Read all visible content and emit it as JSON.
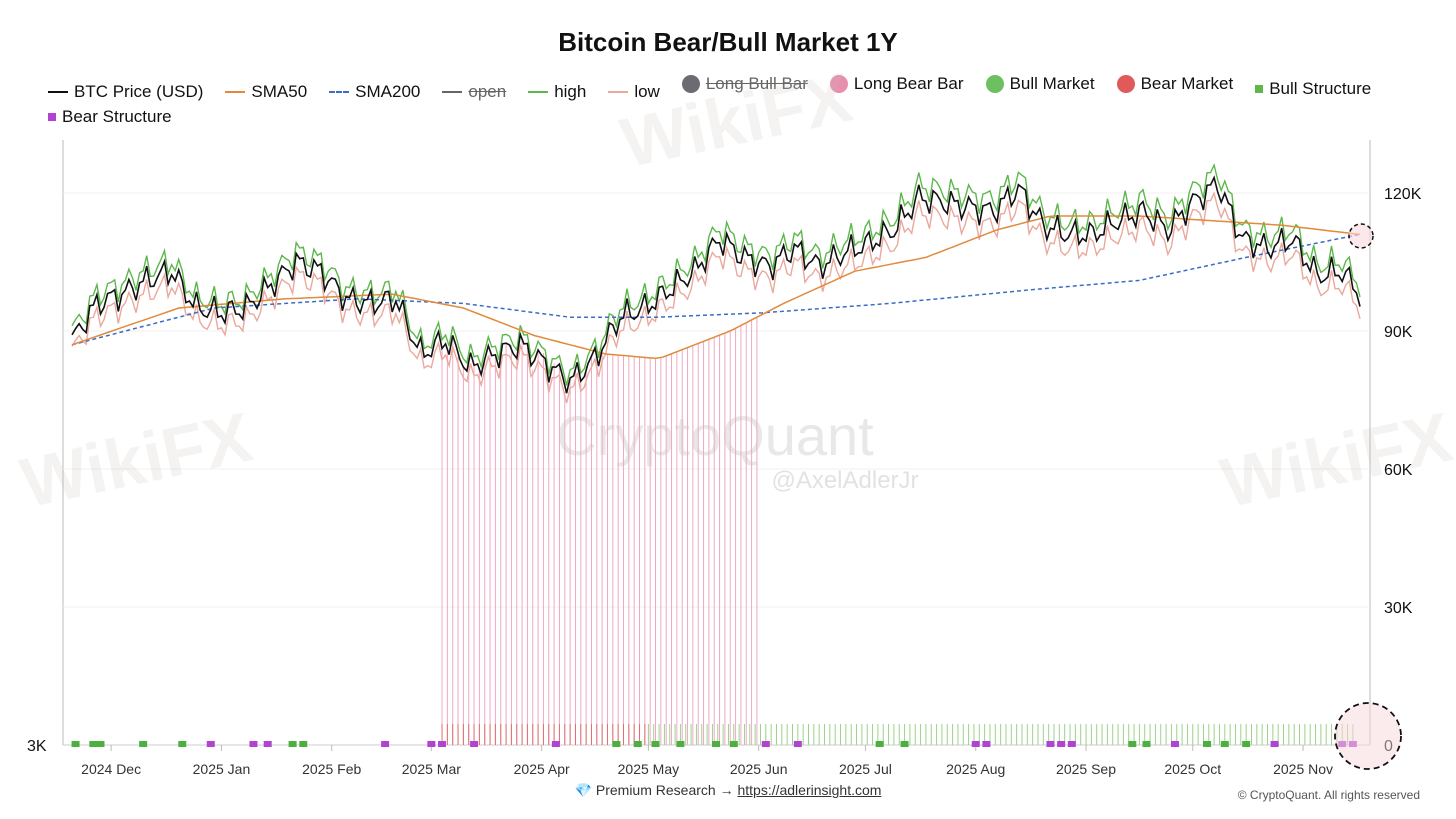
{
  "chart_data": {
    "type": "line",
    "title": "Bitcoin Bear/Bull Market 1Y",
    "legend": [
      {
        "label": "BTC Price (USD)",
        "kind": "line",
        "color": "#111111",
        "hidden": false
      },
      {
        "label": "SMA50",
        "kind": "line",
        "color": "#e08a3c",
        "hidden": false
      },
      {
        "label": "SMA200",
        "kind": "dash",
        "color": "#3a6cc8",
        "hidden": false
      },
      {
        "label": "open",
        "kind": "line",
        "color": "#666666",
        "hidden": true
      },
      {
        "label": "high",
        "kind": "line",
        "color": "#5cb84a",
        "hidden": false
      },
      {
        "label": "low",
        "kind": "line",
        "color": "#eba89d",
        "hidden": false
      },
      {
        "label": "Long Bull Bar",
        "kind": "dot",
        "color": "#6b6b73",
        "hidden": true
      },
      {
        "label": "Long Bear Bar",
        "kind": "dot",
        "color": "#e88fb0",
        "hidden": false
      },
      {
        "label": "Bull Market",
        "kind": "dot",
        "color": "#6cc060",
        "hidden": false
      },
      {
        "label": "Bear Market",
        "kind": "dot",
        "color": "#e05a5a",
        "hidden": false
      },
      {
        "label": "Bull Structure",
        "kind": "sq",
        "color": "#5cb84a",
        "hidden": false
      },
      {
        "label": "Bear Structure",
        "kind": "sq",
        "color": "#b044d0",
        "hidden": false
      }
    ],
    "x_start": "2024-11-20",
    "x_end": "2025-11-17",
    "step_days": 7,
    "x_ticks": [
      {
        "label": "2024 Dec",
        "date": "2024-12-01"
      },
      {
        "label": "2025 Jan",
        "date": "2025-01-01"
      },
      {
        "label": "2025 Feb",
        "date": "2025-02-01"
      },
      {
        "label": "2025 Mar",
        "date": "2025-03-01"
      },
      {
        "label": "2025 Apr",
        "date": "2025-04-01"
      },
      {
        "label": "2025 May",
        "date": "2025-05-01"
      },
      {
        "label": "2025 Jun",
        "date": "2025-06-01"
      },
      {
        "label": "2025 Jul",
        "date": "2025-07-01"
      },
      {
        "label": "2025 Aug",
        "date": "2025-08-01"
      },
      {
        "label": "2025 Sep",
        "date": "2025-09-01"
      },
      {
        "label": "2025 Oct",
        "date": "2025-10-01"
      },
      {
        "label": "2025 Nov",
        "date": "2025-11-01"
      }
    ],
    "y_right_ticks": [
      {
        "label": "0",
        "value": 0
      },
      {
        "label": "30K",
        "value": 30000
      },
      {
        "label": "60K",
        "value": 60000
      },
      {
        "label": "90K",
        "value": 90000
      },
      {
        "label": "120K",
        "value": 120000
      }
    ],
    "y_left_label": "3K",
    "ylim": [
      0,
      132000
    ],
    "btc_price_k": [
      88,
      96,
      98,
      101,
      103,
      95,
      94,
      95,
      100,
      105,
      103,
      97,
      96,
      97,
      85,
      88,
      82,
      85,
      87,
      83,
      79,
      84,
      93,
      95,
      99,
      103,
      110,
      106,
      104,
      108,
      104,
      107,
      109,
      112,
      119,
      118,
      117,
      116,
      121,
      113,
      111,
      111,
      114,
      116,
      112,
      118,
      122,
      110,
      108,
      110,
      102,
      103,
      96
    ],
    "sma50_k": [
      [
        0,
        87
      ],
      [
        30,
        95
      ],
      [
        60,
        97
      ],
      [
        90,
        98
      ],
      [
        110,
        95
      ],
      [
        130,
        89
      ],
      [
        150,
        85
      ],
      [
        165,
        84
      ],
      [
        185,
        90
      ],
      [
        200,
        96
      ],
      [
        220,
        103
      ],
      [
        240,
        106
      ],
      [
        260,
        112
      ],
      [
        275,
        115
      ],
      [
        300,
        115
      ],
      [
        320,
        114
      ],
      [
        340,
        113
      ],
      [
        362,
        111
      ]
    ],
    "sma200_k": [
      [
        0,
        87
      ],
      [
        40,
        95
      ],
      [
        80,
        97
      ],
      [
        110,
        96
      ],
      [
        140,
        93
      ],
      [
        165,
        93
      ],
      [
        195,
        94
      ],
      [
        230,
        96
      ],
      [
        270,
        99
      ],
      [
        300,
        101
      ],
      [
        330,
        106
      ],
      [
        362,
        111
      ]
    ],
    "long_bear_bar_range": [
      "2025-03-04",
      "2025-06-01"
    ],
    "bear_market_bar_range": [
      "2025-03-04",
      "2025-05-01"
    ],
    "bull_market_bar_range": [
      "2025-05-01",
      "2025-11-16"
    ],
    "bull_structure_dates": [
      "2024-11-21",
      "2024-11-26",
      "2024-11-28",
      "2024-12-10",
      "2024-12-21",
      "2025-01-21",
      "2025-01-24",
      "2025-04-22",
      "2025-04-28",
      "2025-05-03",
      "2025-05-10",
      "2025-05-20",
      "2025-05-25",
      "2025-07-05",
      "2025-07-12",
      "2025-09-14",
      "2025-09-18",
      "2025-10-05",
      "2025-10-10",
      "2025-10-16"
    ],
    "bear_structure_dates": [
      "2024-12-29",
      "2025-01-10",
      "2025-01-14",
      "2025-02-16",
      "2025-03-01",
      "2025-03-04",
      "2025-03-13",
      "2025-04-05",
      "2025-06-03",
      "2025-06-12",
      "2025-08-01",
      "2025-08-04",
      "2025-08-22",
      "2025-08-25",
      "2025-08-28",
      "2025-09-26",
      "2025-10-24",
      "2025-11-12",
      "2025-11-15"
    ]
  },
  "watermark": {
    "main": "CryptoQuant",
    "handle": "@AxelAdlerJr",
    "overlay": "WikiFX"
  },
  "footer": {
    "icon": "gem-icon",
    "text": "Premium Research → ",
    "link": "https://adlerinsight.com",
    "copyright": "© CryptoQuant. All rights reserved"
  }
}
